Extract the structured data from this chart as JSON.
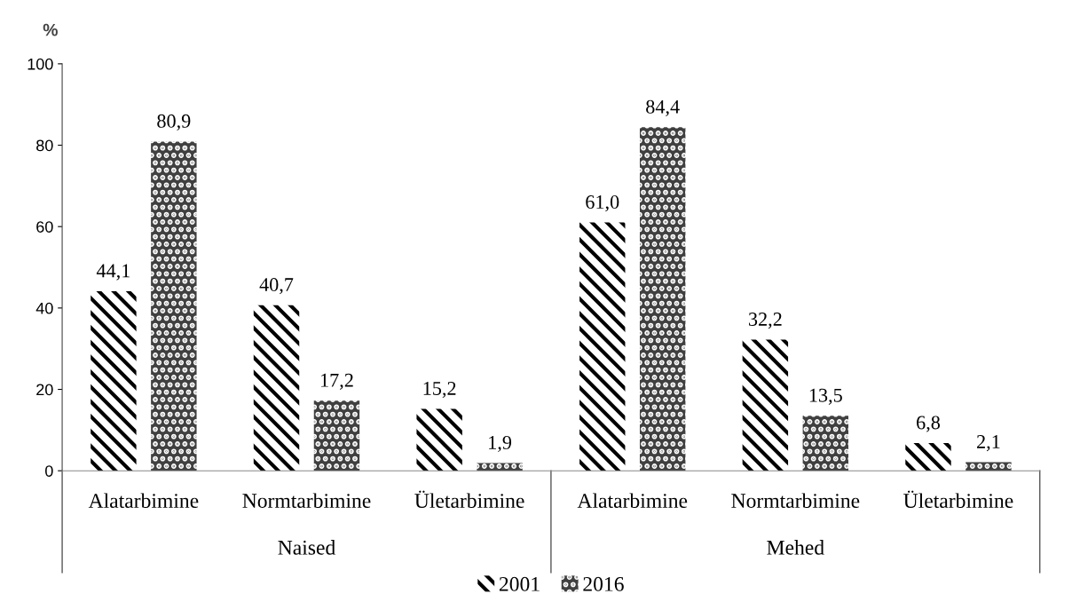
{
  "chart_data": {
    "type": "bar",
    "categories": [
      "Alatarbimine",
      "Normtarbimine",
      "Ületarbimine",
      "Alatarbimine",
      "Normtarbimine",
      "Ületarbimine"
    ],
    "series": [
      {
        "name": "2001",
        "color": "#000000",
        "values": [
          44.1,
          40.7,
          15.2,
          61.0,
          32.2,
          6.8
        ],
        "value_labels": [
          "44,1",
          "40,7",
          "15,2",
          "61,0",
          "32,2",
          "6,8"
        ]
      },
      {
        "name": "2016",
        "color": "#404040",
        "values": [
          80.9,
          17.2,
          1.9,
          84.4,
          13.5,
          2.1
        ],
        "value_labels": [
          "80,9",
          "17,2",
          "1,9",
          "84,4",
          "13,5",
          "2,1"
        ]
      }
    ],
    "ylabel": "%",
    "ylim": [
      0,
      100
    ],
    "yticks": [
      0,
      20,
      40,
      60,
      80,
      100
    ],
    "annotations": [
      "Naised",
      "Mehed"
    ],
    "grid": false,
    "legend": "bottom"
  }
}
